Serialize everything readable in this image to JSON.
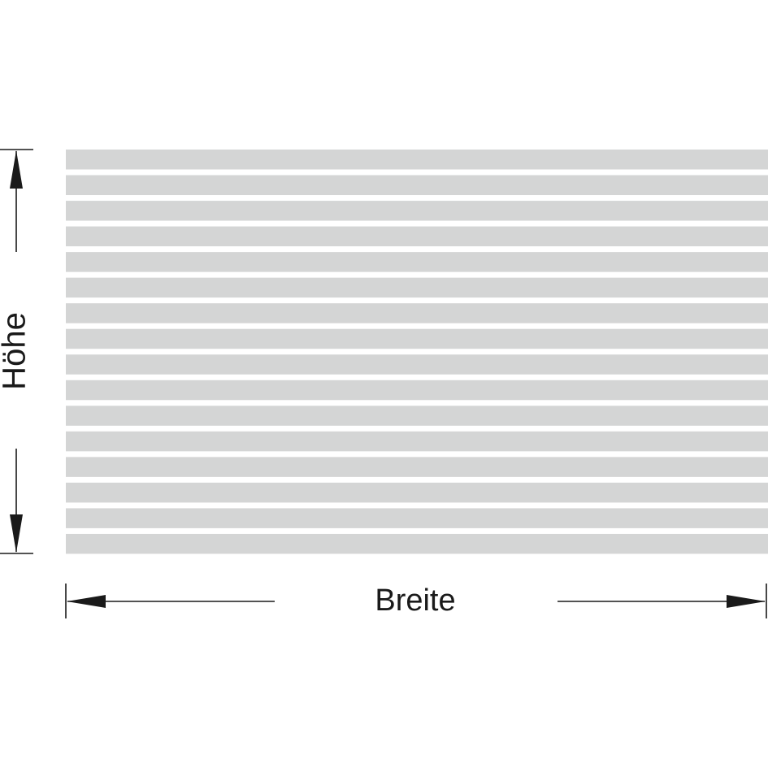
{
  "labels": {
    "height": "Höhe",
    "width": "Breite"
  }
}
